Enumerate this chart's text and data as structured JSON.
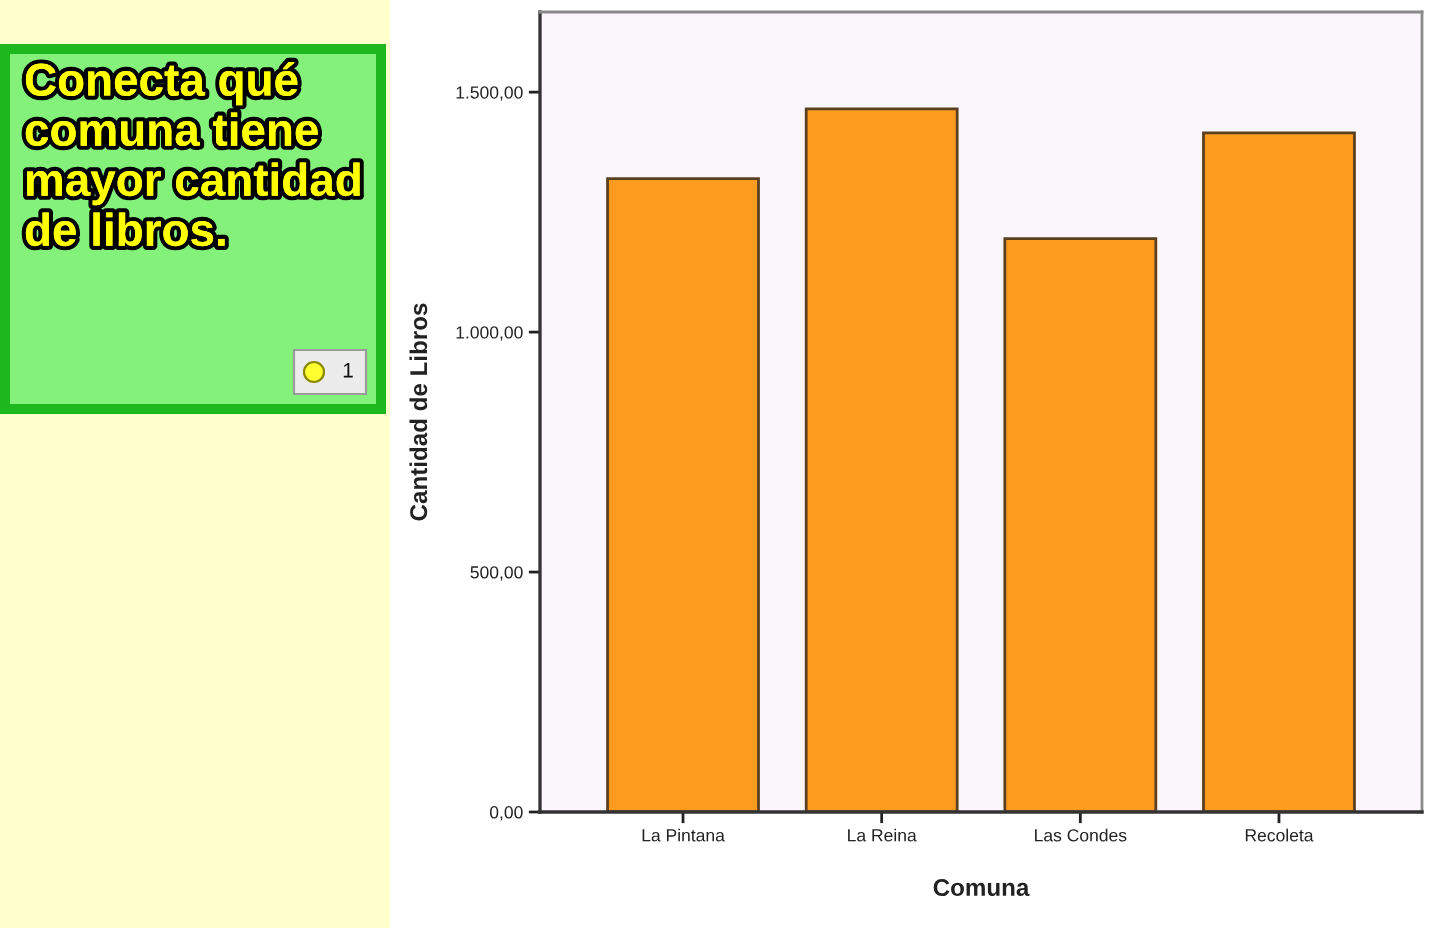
{
  "chart_data": {
    "type": "bar",
    "categories": [
      "La Pintana",
      "La Reina",
      "Las Condes",
      "Recoleta"
    ],
    "values": [
      1320,
      1465,
      1195,
      1415
    ],
    "color": "#fd9b1e",
    "xlabel": "Comuna",
    "ylabel": "Cantidad de Libros",
    "ylim": [
      0,
      1667
    ],
    "yticks": [
      {
        "value": 0,
        "label": "0,00"
      },
      {
        "value": 500,
        "label": "500,00"
      },
      {
        "value": 1000,
        "label": "1.000,00"
      },
      {
        "value": 1500,
        "label": "1.500,00"
      }
    ],
    "annotations": [
      "Conecta qué\ncomuna tiene\nmayor cantidad\nde libros.",
      "1"
    ]
  }
}
